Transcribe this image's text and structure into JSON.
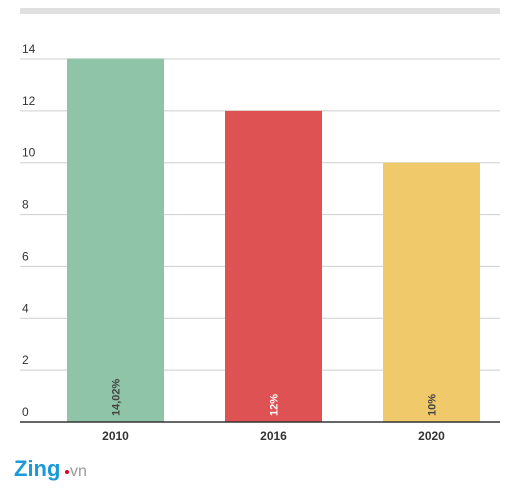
{
  "chart_data": {
    "type": "bar",
    "categories": [
      "2010",
      "2016",
      "2020"
    ],
    "values": [
      14.02,
      12,
      10
    ],
    "value_labels": [
      "14,02%",
      "12%",
      "10%"
    ],
    "colors": [
      "#8fc4a8",
      "#de5254",
      "#f0c96a"
    ],
    "ylim": [
      0,
      14
    ],
    "yticks": [
      0,
      2,
      4,
      6,
      8,
      10,
      12,
      14
    ],
    "grid": true
  },
  "logo": {
    "brand": "Zing",
    "suffix": "vn"
  }
}
